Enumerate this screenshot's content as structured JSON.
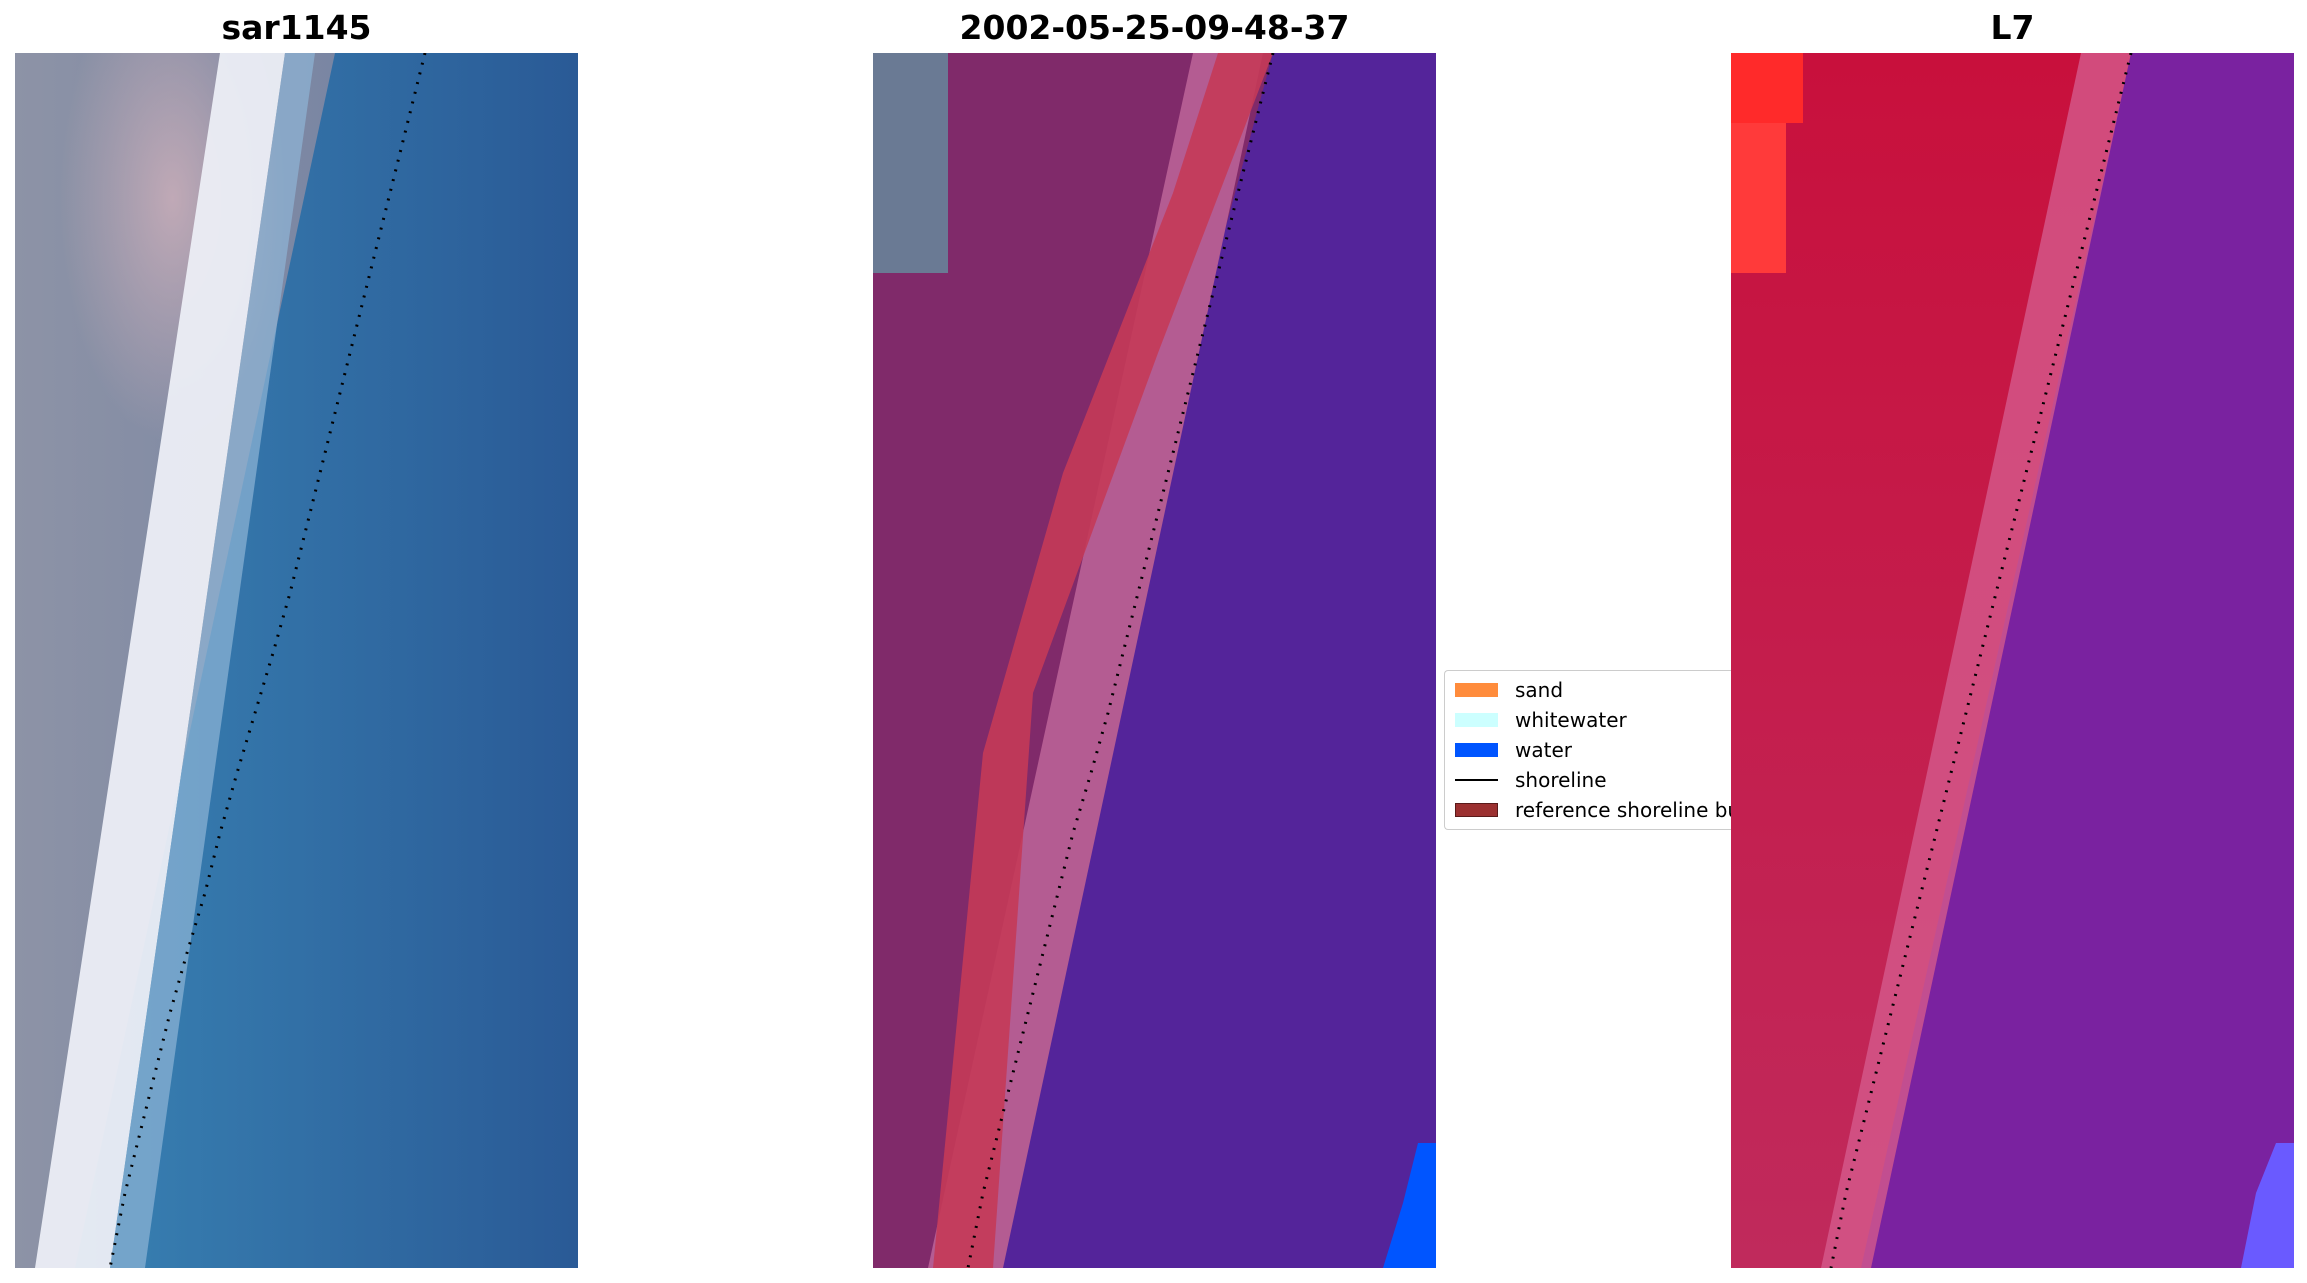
{
  "panels": [
    {
      "title": "sar1145"
    },
    {
      "title": "2002-05-25-09-48-37"
    },
    {
      "title": "L7"
    }
  ],
  "legend": {
    "items": [
      {
        "label": "sand",
        "color": "#ff8c3c"
      },
      {
        "label": "whitewater",
        "color": "#ccffff"
      },
      {
        "label": "water",
        "color": "#0055ff"
      },
      {
        "label": "shoreline",
        "color": "#000000"
      },
      {
        "label": "reference shoreline buffer",
        "color": "#9b3030"
      }
    ]
  },
  "colors": {
    "ocean_rgb": "#2f6aa3",
    "land_rgb": "#8a90a6",
    "classified_water": "#54249a",
    "classified_land": "#802a6a",
    "buffer": "#c43a58",
    "index_land": "#c8103c",
    "index_water": "#7a22a0"
  }
}
